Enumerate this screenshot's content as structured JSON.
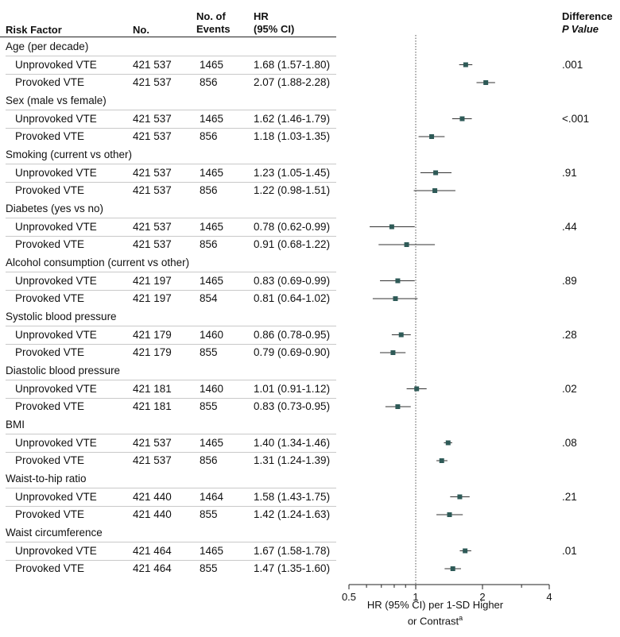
{
  "headers": {
    "risk_factor": "Risk Factor",
    "no": "No.",
    "events_line1": "No. of",
    "events_line2": "Events",
    "hr_line1": "HR",
    "hr_line2": "(95% CI)",
    "diff_line1": "Difference",
    "diff_line2": "P Value"
  },
  "groups": [
    {
      "label": "Age (per decade)",
      "p": ".001",
      "rows": [
        {
          "label": "Unprovoked VTE",
          "n": "421 537",
          "events": "1465",
          "hrci": "1.68 (1.57-1.80)"
        },
        {
          "label": "Provoked VTE",
          "n": "421 537",
          "events": "856",
          "hrci": "2.07 (1.88-2.28)"
        }
      ]
    },
    {
      "label": "Sex (male vs female)",
      "p": "<.001",
      "rows": [
        {
          "label": "Unprovoked VTE",
          "n": "421 537",
          "events": "1465",
          "hrci": "1.62 (1.46-1.79)"
        },
        {
          "label": "Provoked VTE",
          "n": "421 537",
          "events": "856",
          "hrci": "1.18 (1.03-1.35)"
        }
      ]
    },
    {
      "label": "Smoking (current vs other)",
      "p": ".91",
      "rows": [
        {
          "label": "Unprovoked VTE",
          "n": "421 537",
          "events": "1465",
          "hrci": "1.23 (1.05-1.45)"
        },
        {
          "label": "Provoked VTE",
          "n": "421 537",
          "events": "856",
          "hrci": "1.22 (0.98-1.51)"
        }
      ]
    },
    {
      "label": "Diabetes (yes vs no)",
      "p": ".44",
      "rows": [
        {
          "label": "Unprovoked VTE",
          "n": "421 537",
          "events": "1465",
          "hrci": "0.78 (0.62-0.99)"
        },
        {
          "label": "Provoked VTE",
          "n": "421 537",
          "events": "856",
          "hrci": "0.91 (0.68-1.22)"
        }
      ]
    },
    {
      "label": "Alcohol consumption (current vs other)",
      "p": ".89",
      "rows": [
        {
          "label": "Unprovoked VTE",
          "n": "421 197",
          "events": "1465",
          "hrci": "0.83 (0.69-0.99)"
        },
        {
          "label": "Provoked VTE",
          "n": "421 197",
          "events": "854",
          "hrci": "0.81 (0.64-1.02)"
        }
      ]
    },
    {
      "label": "Systolic blood pressure",
      "p": ".28",
      "rows": [
        {
          "label": "Unprovoked VTE",
          "n": "421 179",
          "events": "1460",
          "hrci": "0.86 (0.78-0.95)"
        },
        {
          "label": "Provoked VTE",
          "n": "421 179",
          "events": "855",
          "hrci": "0.79 (0.69-0.90)"
        }
      ]
    },
    {
      "label": "Diastolic blood pressure",
      "p": ".02",
      "rows": [
        {
          "label": "Unprovoked VTE",
          "n": "421 181",
          "events": "1460",
          "hrci": "1.01 (0.91-1.12)"
        },
        {
          "label": "Provoked VTE",
          "n": "421 181",
          "events": "855",
          "hrci": "0.83 (0.73-0.95)"
        }
      ]
    },
    {
      "label": "BMI",
      "p": ".08",
      "rows": [
        {
          "label": "Unprovoked VTE",
          "n": "421 537",
          "events": "1465",
          "hrci": "1.40 (1.34-1.46)"
        },
        {
          "label": "Provoked VTE",
          "n": "421 537",
          "events": "856",
          "hrci": "1.31 (1.24-1.39)"
        }
      ]
    },
    {
      "label": "Waist-to-hip ratio",
      "p": ".21",
      "rows": [
        {
          "label": "Unprovoked VTE",
          "n": "421 440",
          "events": "1464",
          "hrci": "1.58 (1.43-1.75)"
        },
        {
          "label": "Provoked VTE",
          "n": "421 440",
          "events": "855",
          "hrci": "1.42 (1.24-1.63)"
        }
      ]
    },
    {
      "label": "Waist circumference",
      "p": ".01",
      "rows": [
        {
          "label": "Unprovoked VTE",
          "n": "421 464",
          "events": "1465",
          "hrci": "1.67 (1.58-1.78)"
        },
        {
          "label": "Provoked VTE",
          "n": "421 464",
          "events": "855",
          "hrci": "1.47 (1.35-1.60)"
        }
      ]
    }
  ],
  "colors": {
    "marker": "#2e5a57",
    "ci_line": "#333333",
    "ref_line": "#555555",
    "axis": "#222222"
  },
  "chart_data": {
    "type": "scatter",
    "xscale": "log",
    "xlim": [
      0.5,
      4
    ],
    "ticks": [
      0.5,
      1,
      2,
      4
    ],
    "tick_labels": [
      "0.5",
      "1",
      "2",
      "4"
    ],
    "minor_ticks": [
      0.6,
      0.7,
      0.8,
      0.9,
      3
    ],
    "reference_line": 1,
    "xlabel_line1": "HR (95% CI) per 1-SD Higher",
    "xlabel_line2": "or Contrast",
    "xlabel_sup": "a",
    "points": [
      {
        "hr": 1.68,
        "lo": 1.57,
        "hi": 1.8
      },
      {
        "hr": 2.07,
        "lo": 1.88,
        "hi": 2.28
      },
      {
        "hr": 1.62,
        "lo": 1.46,
        "hi": 1.79
      },
      {
        "hr": 1.18,
        "lo": 1.03,
        "hi": 1.35
      },
      {
        "hr": 1.23,
        "lo": 1.05,
        "hi": 1.45
      },
      {
        "hr": 1.22,
        "lo": 0.98,
        "hi": 1.51
      },
      {
        "hr": 0.78,
        "lo": 0.62,
        "hi": 0.99
      },
      {
        "hr": 0.91,
        "lo": 0.68,
        "hi": 1.22
      },
      {
        "hr": 0.83,
        "lo": 0.69,
        "hi": 0.99
      },
      {
        "hr": 0.81,
        "lo": 0.64,
        "hi": 1.02
      },
      {
        "hr": 0.86,
        "lo": 0.78,
        "hi": 0.95
      },
      {
        "hr": 0.79,
        "lo": 0.69,
        "hi": 0.9
      },
      {
        "hr": 1.01,
        "lo": 0.91,
        "hi": 1.12
      },
      {
        "hr": 0.83,
        "lo": 0.73,
        "hi": 0.95
      },
      {
        "hr": 1.4,
        "lo": 1.34,
        "hi": 1.46
      },
      {
        "hr": 1.31,
        "lo": 1.24,
        "hi": 1.39
      },
      {
        "hr": 1.58,
        "lo": 1.43,
        "hi": 1.75
      },
      {
        "hr": 1.42,
        "lo": 1.24,
        "hi": 1.63
      },
      {
        "hr": 1.67,
        "lo": 1.58,
        "hi": 1.78
      },
      {
        "hr": 1.47,
        "lo": 1.35,
        "hi": 1.6
      }
    ]
  }
}
